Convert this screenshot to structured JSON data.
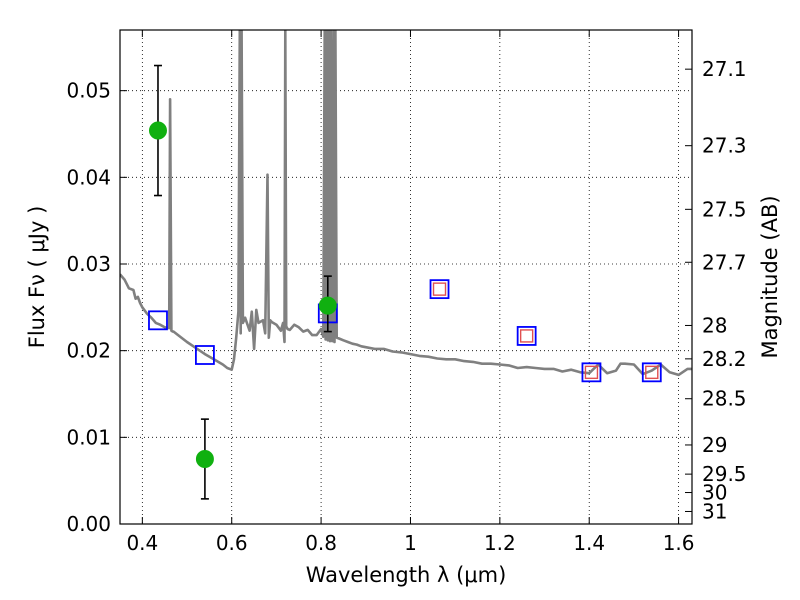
{
  "chart_data": {
    "type": "scatter",
    "xlabel": "Wavelength  λ (μm)",
    "ylabel": "Flux  Fν  ( μJy )",
    "y2label": "Magnitude (AB)",
    "xlim": [
      0.35,
      1.63
    ],
    "ylim": [
      0.0,
      0.057
    ],
    "grid": true,
    "x_ticks": [
      0.4,
      0.6,
      0.8,
      1.0,
      1.2,
      1.4,
      1.6
    ],
    "x_tick_labels": [
      "0.4",
      "0.6",
      "0.8",
      "1",
      "1.2",
      "1.4",
      "1.6"
    ],
    "y_ticks": [
      0.0,
      0.01,
      0.02,
      0.03,
      0.04,
      0.05
    ],
    "y_tick_labels": [
      "0.00",
      "0.01",
      "0.02",
      "0.03",
      "0.04",
      "0.05"
    ],
    "y2_ticks": [
      27.1,
      27.3,
      27.5,
      27.7,
      28,
      28.2,
      28.5,
      29,
      29.5,
      30,
      31
    ],
    "y2_tick_labels": [
      "27.1",
      "27.3",
      "27.5",
      "27.7",
      "28",
      "28.2",
      "28.5",
      "29",
      "29.5",
      "30",
      "31"
    ],
    "series": [
      {
        "kind": "model_spectrum",
        "color": "#808080",
        "x": [
          0.35,
          0.36,
          0.37,
          0.38,
          0.385,
          0.39,
          0.395,
          0.4,
          0.41,
          0.42,
          0.43,
          0.44,
          0.45,
          0.46,
          0.462,
          0.465,
          0.468,
          0.47,
          0.48,
          0.5,
          0.52,
          0.54,
          0.56,
          0.58,
          0.59,
          0.6,
          0.605,
          0.61,
          0.615,
          0.618,
          0.62,
          0.622,
          0.625,
          0.63,
          0.64,
          0.645,
          0.65,
          0.655,
          0.66,
          0.67,
          0.675,
          0.68,
          0.683,
          0.686,
          0.69,
          0.7,
          0.71,
          0.715,
          0.718,
          0.72,
          0.722,
          0.725,
          0.73,
          0.74,
          0.75,
          0.76,
          0.77,
          0.78,
          0.79,
          0.8,
          0.805,
          0.808,
          0.81,
          0.812,
          0.815,
          0.818,
          0.82,
          0.822,
          0.825,
          0.828,
          0.83,
          0.832,
          0.835,
          0.84,
          0.85,
          0.86,
          0.87,
          0.88,
          0.89,
          0.9,
          0.92,
          0.94,
          0.96,
          0.98,
          1.0,
          1.02,
          1.04,
          1.06,
          1.08,
          1.1,
          1.12,
          1.14,
          1.16,
          1.18,
          1.2,
          1.22,
          1.24,
          1.26,
          1.28,
          1.3,
          1.32,
          1.34,
          1.36,
          1.38,
          1.4,
          1.42,
          1.44,
          1.46,
          1.47,
          1.48,
          1.5,
          1.52,
          1.54,
          1.56,
          1.58,
          1.6,
          1.62,
          1.63
        ],
        "y": [
          0.0288,
          0.0282,
          0.0272,
          0.027,
          0.026,
          0.0262,
          0.0255,
          0.025,
          0.0243,
          0.0238,
          0.0232,
          0.023,
          0.0227,
          0.0226,
          0.049,
          0.0223,
          0.0222,
          0.0222,
          0.0218,
          0.021,
          0.0203,
          0.0196,
          0.019,
          0.0184,
          0.018,
          0.0178,
          0.019,
          0.0215,
          0.0245,
          0.057,
          0.022,
          0.057,
          0.0232,
          0.0238,
          0.0223,
          0.0245,
          0.0202,
          0.0247,
          0.0232,
          0.0235,
          0.022,
          0.0403,
          0.0215,
          0.0235,
          0.0233,
          0.023,
          0.0223,
          0.0232,
          0.021,
          0.057,
          0.0228,
          0.0225,
          0.0224,
          0.023,
          0.0227,
          0.0222,
          0.0224,
          0.0218,
          0.0218,
          0.0225,
          0.0216,
          0.057,
          0.0213,
          0.057,
          0.0212,
          0.057,
          0.0211,
          0.057,
          0.0211,
          0.057,
          0.021,
          0.057,
          0.0215,
          0.0214,
          0.0212,
          0.021,
          0.0208,
          0.0207,
          0.0205,
          0.0204,
          0.0202,
          0.0202,
          0.0199,
          0.0198,
          0.0196,
          0.0194,
          0.0193,
          0.0191,
          0.019,
          0.019,
          0.0188,
          0.0187,
          0.0185,
          0.0185,
          0.0184,
          0.0183,
          0.018,
          0.0181,
          0.018,
          0.0179,
          0.0179,
          0.0176,
          0.0178,
          0.0175,
          0.0174,
          0.0184,
          0.0174,
          0.0177,
          0.0185,
          0.0185,
          0.0184,
          0.0173,
          0.0177,
          0.0184,
          0.0175,
          0.0172,
          0.0179,
          0.0179
        ]
      },
      {
        "kind": "model_photometry",
        "marker": "square",
        "color": "#0000ff",
        "x": [
          0.435,
          0.54,
          0.815,
          1.065,
          1.26,
          1.405,
          1.54
        ],
        "y": [
          0.0235,
          0.0195,
          0.0243,
          0.0271,
          0.0217,
          0.0175,
          0.0175
        ]
      },
      {
        "kind": "predicted_photometry",
        "marker": "square",
        "color": "#e05050",
        "x": [
          1.065,
          1.26,
          1.405,
          1.54
        ],
        "y": [
          0.0271,
          0.0217,
          0.0175,
          0.0175
        ]
      },
      {
        "kind": "observed_photometry",
        "marker": "circle",
        "color": "#10b010",
        "x": [
          0.435,
          0.54,
          0.815
        ],
        "y": [
          0.0454,
          0.0075,
          0.0252
        ],
        "yerr_low": [
          0.0379,
          0.0029,
          0.0222
        ],
        "yerr_high": [
          0.0529,
          0.0121,
          0.0286
        ]
      }
    ]
  }
}
